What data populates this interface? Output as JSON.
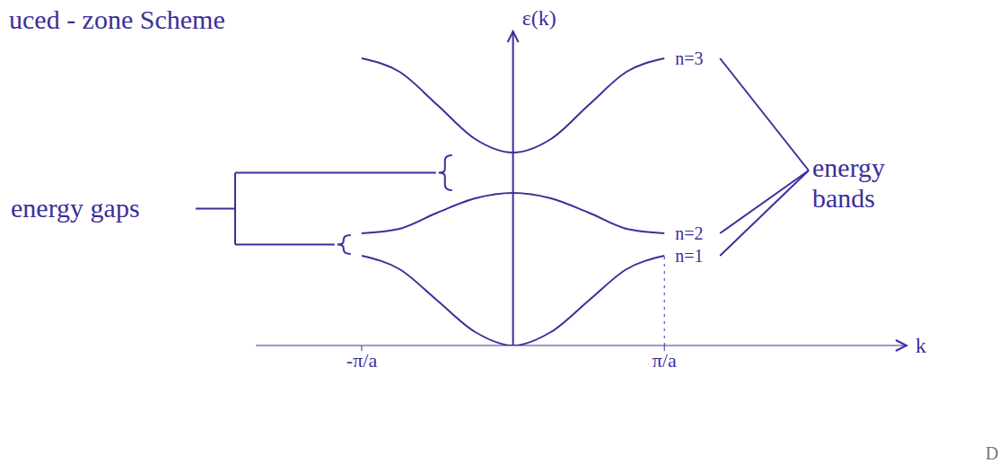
{
  "chart_data": {
    "type": "line",
    "title": "uced - zone Scheme",
    "y_label": "ε(k)",
    "x_label": "k",
    "x": [
      -1,
      -0.75,
      -0.5,
      -0.25,
      0,
      0.25,
      0.5,
      0.75,
      1
    ],
    "xlim": [
      -1.7,
      2.6
    ],
    "xticks": [
      {
        "value": -1,
        "label": "-π/a"
      },
      {
        "value": 1,
        "label": "π/a"
      }
    ],
    "ylim": [
      0,
      35
    ],
    "yticks": [],
    "tick_labels": "x",
    "grid": false,
    "color": "#3b2f9a",
    "series": [
      {
        "name": "n=1",
        "values": [
          10,
          8.5,
          5,
          1.5,
          0,
          1.5,
          5,
          8.5,
          10
        ]
      },
      {
        "name": "n=2",
        "values": [
          12.5,
          13,
          14.8,
          16.4,
          17,
          16.4,
          14.8,
          13,
          12.5
        ]
      },
      {
        "name": "n=3",
        "values": [
          32,
          30.5,
          26.8,
          23,
          21.5,
          23,
          26.8,
          30.5,
          32
        ]
      }
    ],
    "annotations": {
      "energy_gaps": "energy gaps",
      "energy_bands": "energy bands"
    },
    "page_mark": "D"
  }
}
